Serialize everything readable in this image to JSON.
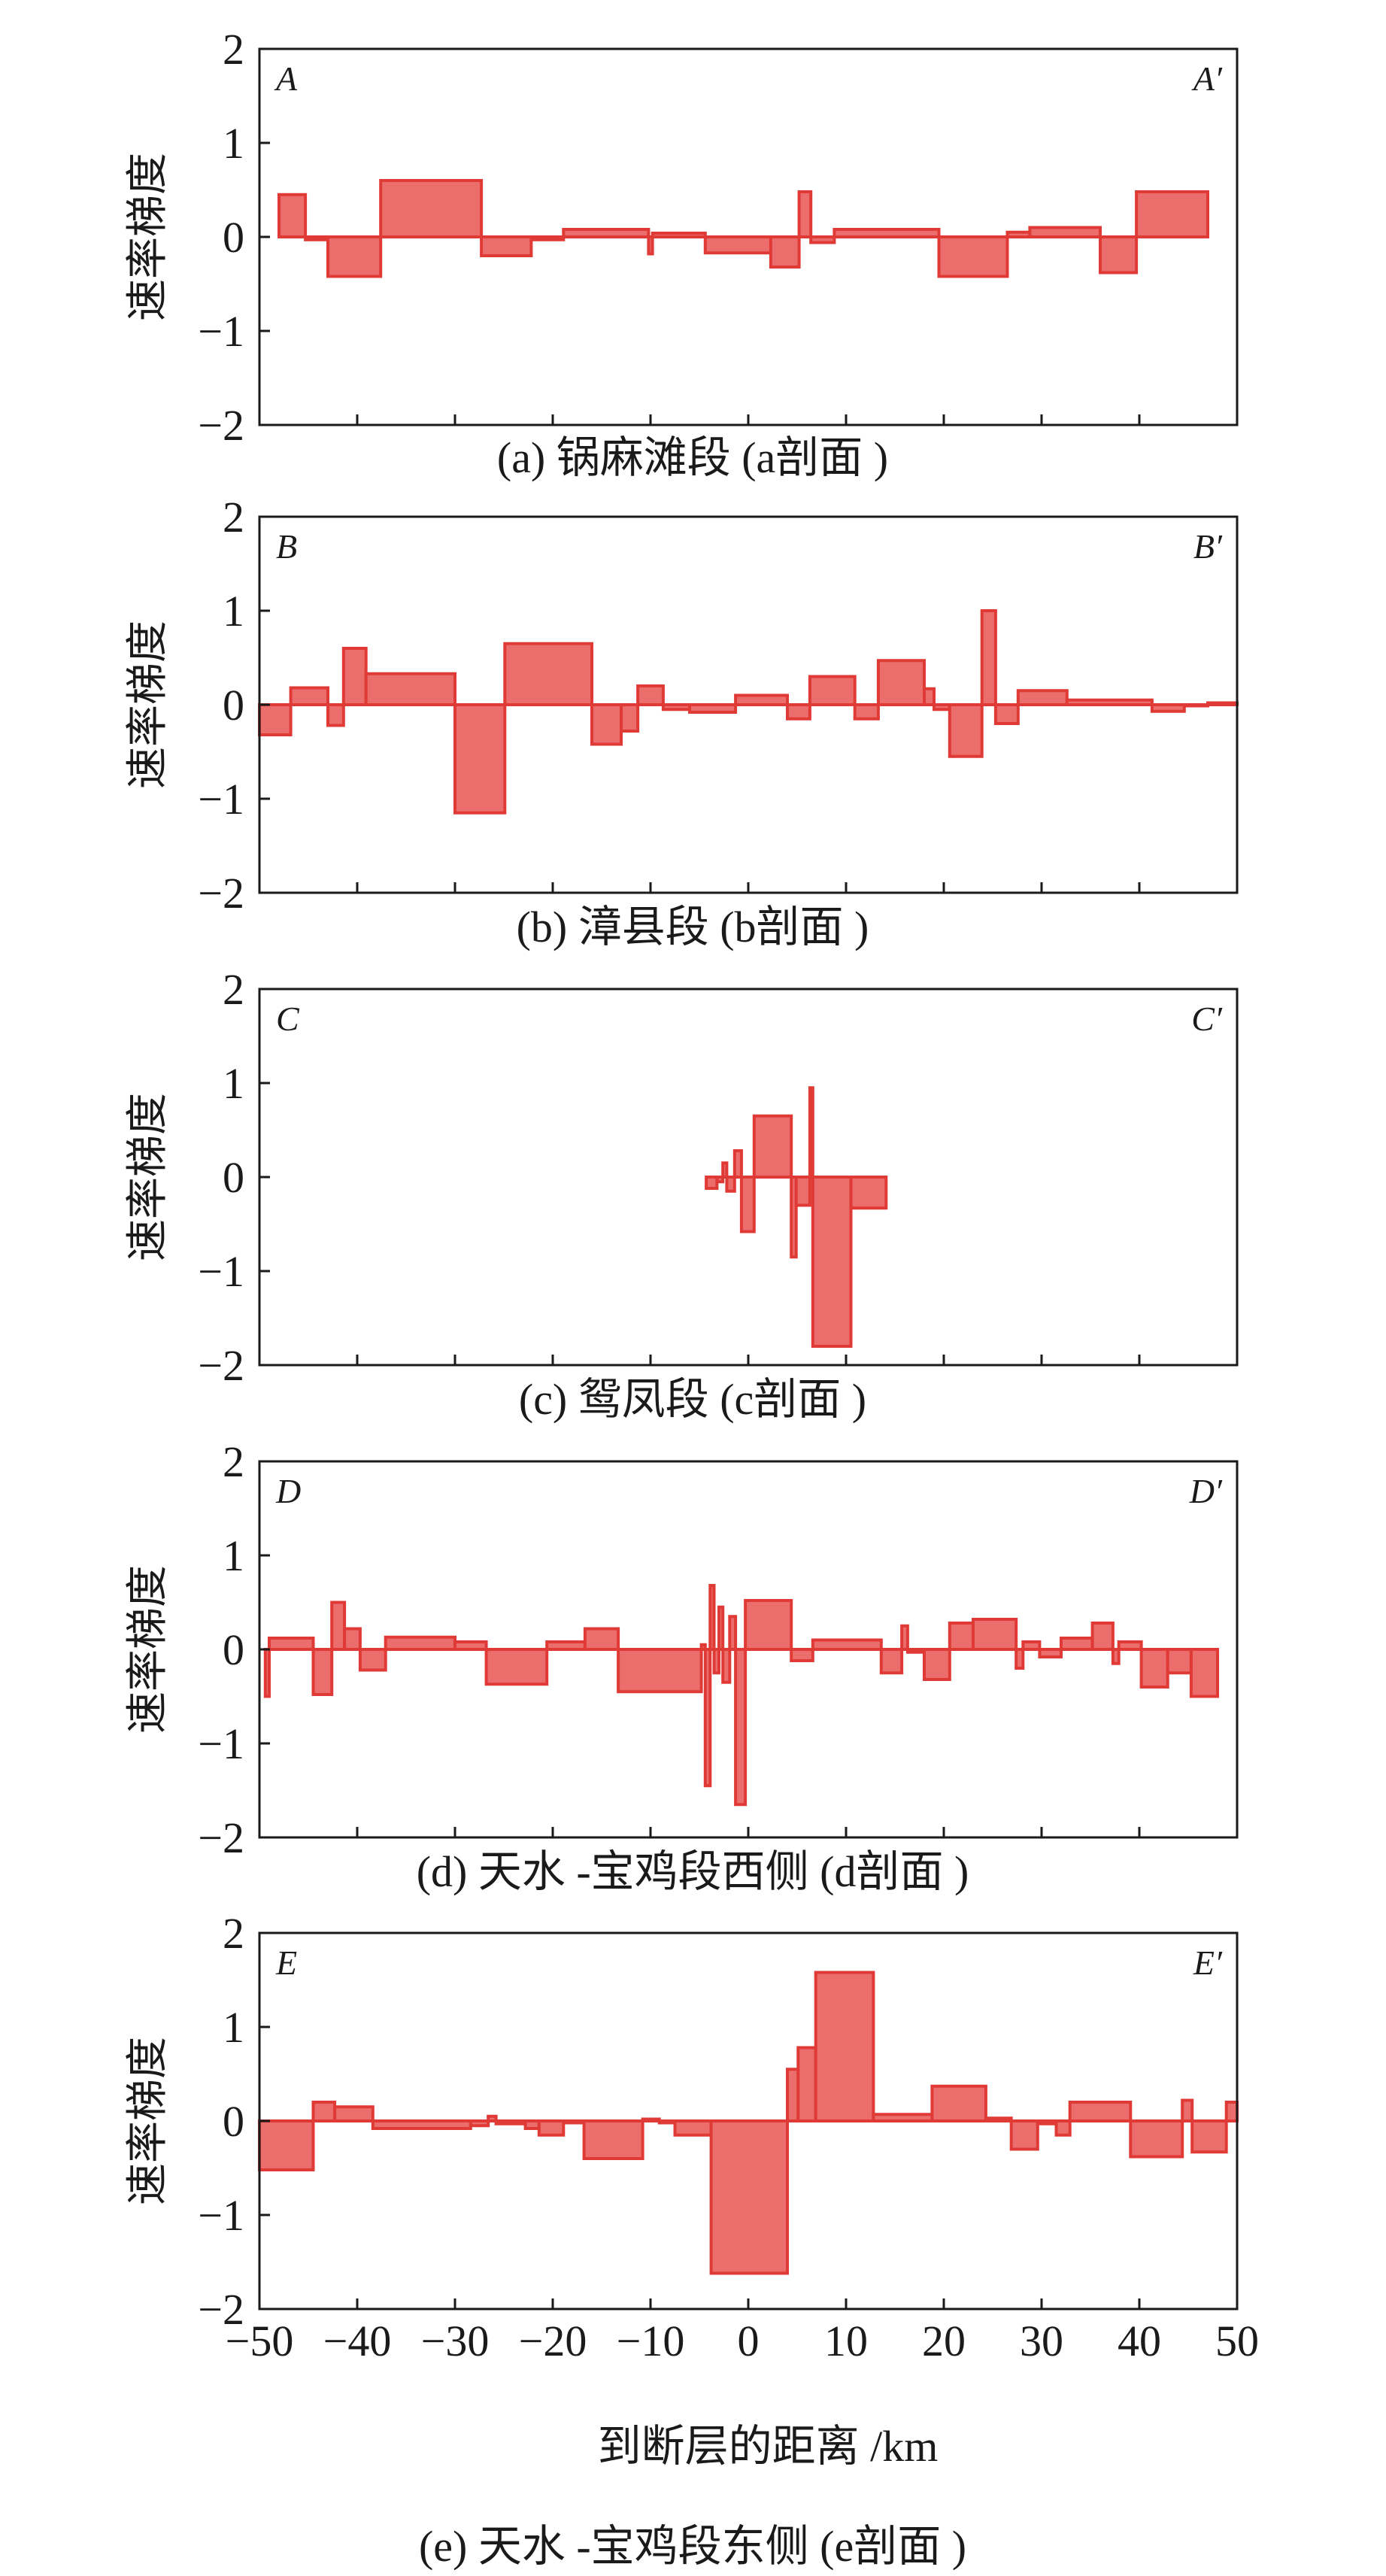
{
  "figure": {
    "ylabel": "速率梯度",
    "xlabel": "到断层的距离 /km",
    "bar_fill": "#ec6e6c",
    "bar_stroke": "#e03a37"
  },
  "chart_data": [
    {
      "type": "bar",
      "title": "(a) 锅麻滩段 (a剖面 )",
      "corner_left": "A",
      "corner_right": "A′",
      "xlim": [
        -50,
        50
      ],
      "ylim": [
        -2,
        2
      ],
      "yticks": [
        -2,
        -1,
        0,
        1,
        2
      ],
      "bars": [
        {
          "x0": -48.0,
          "x1": -45.3,
          "y": 0.45
        },
        {
          "x0": -45.3,
          "x1": -43.0,
          "y": -0.03
        },
        {
          "x0": -43.0,
          "x1": -37.6,
          "y": -0.42
        },
        {
          "x0": -37.6,
          "x1": -27.3,
          "y": 0.6
        },
        {
          "x0": -27.3,
          "x1": -22.2,
          "y": -0.2
        },
        {
          "x0": -22.2,
          "x1": -18.9,
          "y": -0.03
        },
        {
          "x0": -18.9,
          "x1": -10.2,
          "y": 0.08
        },
        {
          "x0": -10.2,
          "x1": -9.8,
          "y": -0.18
        },
        {
          "x0": -9.8,
          "x1": -4.4,
          "y": 0.04
        },
        {
          "x0": -4.4,
          "x1": 2.3,
          "y": -0.17
        },
        {
          "x0": 2.3,
          "x1": 5.2,
          "y": -0.32
        },
        {
          "x0": 5.2,
          "x1": 6.4,
          "y": 0.48
        },
        {
          "x0": 6.4,
          "x1": 8.8,
          "y": -0.06
        },
        {
          "x0": 8.8,
          "x1": 19.5,
          "y": 0.08
        },
        {
          "x0": 19.5,
          "x1": 26.5,
          "y": -0.42
        },
        {
          "x0": 26.5,
          "x1": 28.8,
          "y": 0.05
        },
        {
          "x0": 28.8,
          "x1": 36.0,
          "y": 0.1
        },
        {
          "x0": 36.0,
          "x1": 39.7,
          "y": -0.38
        },
        {
          "x0": 39.7,
          "x1": 47.0,
          "y": 0.48
        }
      ]
    },
    {
      "type": "bar",
      "title": "(b) 漳县段 (b剖面 )",
      "corner_left": "B",
      "corner_right": "B′",
      "xlim": [
        -50,
        50
      ],
      "ylim": [
        -2,
        2
      ],
      "yticks": [
        -2,
        -1,
        0,
        1,
        2
      ],
      "bars": [
        {
          "x0": -50.0,
          "x1": -46.8,
          "y": -0.32
        },
        {
          "x0": -46.8,
          "x1": -43.0,
          "y": 0.18
        },
        {
          "x0": -43.0,
          "x1": -41.4,
          "y": -0.22
        },
        {
          "x0": -41.4,
          "x1": -39.1,
          "y": 0.6
        },
        {
          "x0": -39.1,
          "x1": -30.0,
          "y": 0.33
        },
        {
          "x0": -30.0,
          "x1": -24.9,
          "y": -1.15
        },
        {
          "x0": -24.9,
          "x1": -16.0,
          "y": 0.65
        },
        {
          "x0": -16.0,
          "x1": -13.0,
          "y": -0.42
        },
        {
          "x0": -13.0,
          "x1": -11.3,
          "y": -0.28
        },
        {
          "x0": -11.3,
          "x1": -8.7,
          "y": 0.2
        },
        {
          "x0": -8.7,
          "x1": -6.0,
          "y": -0.05
        },
        {
          "x0": -6.0,
          "x1": -1.3,
          "y": -0.08
        },
        {
          "x0": -1.3,
          "x1": 4.0,
          "y": 0.1
        },
        {
          "x0": 4.0,
          "x1": 6.3,
          "y": -0.15
        },
        {
          "x0": 6.3,
          "x1": 10.9,
          "y": 0.3
        },
        {
          "x0": 10.9,
          "x1": 13.3,
          "y": -0.15
        },
        {
          "x0": 13.3,
          "x1": 18.0,
          "y": 0.47
        },
        {
          "x0": 18.0,
          "x1": 19.0,
          "y": 0.17
        },
        {
          "x0": 19.0,
          "x1": 20.6,
          "y": -0.05
        },
        {
          "x0": 20.6,
          "x1": 23.9,
          "y": -0.55
        },
        {
          "x0": 23.9,
          "x1": 25.3,
          "y": 1.0
        },
        {
          "x0": 25.3,
          "x1": 27.6,
          "y": -0.2
        },
        {
          "x0": 27.6,
          "x1": 32.6,
          "y": 0.15
        },
        {
          "x0": 32.6,
          "x1": 41.3,
          "y": 0.05
        },
        {
          "x0": 41.3,
          "x1": 44.6,
          "y": -0.07
        },
        {
          "x0": 44.6,
          "x1": 47.0,
          "y": 0.0
        },
        {
          "x0": 47.0,
          "x1": 50.0,
          "y": 0.02
        }
      ]
    },
    {
      "type": "bar",
      "title": "(c) 鸳凤段 (c剖面 )",
      "corner_left": "C",
      "corner_right": "C′",
      "xlim": [
        -50,
        50
      ],
      "ylim": [
        -2,
        2
      ],
      "yticks": [
        -2,
        -1,
        0,
        1,
        2
      ],
      "bars": [
        {
          "x0": -4.3,
          "x1": -3.2,
          "y": -0.12
        },
        {
          "x0": -3.2,
          "x1": -2.6,
          "y": -0.05
        },
        {
          "x0": -2.6,
          "x1": -2.2,
          "y": 0.15
        },
        {
          "x0": -2.2,
          "x1": -1.4,
          "y": -0.15
        },
        {
          "x0": -1.4,
          "x1": -0.7,
          "y": 0.28
        },
        {
          "x0": -0.7,
          "x1": 0.6,
          "y": -0.58
        },
        {
          "x0": 0.6,
          "x1": 4.4,
          "y": 0.65
        },
        {
          "x0": 4.4,
          "x1": 4.9,
          "y": -0.85
        },
        {
          "x0": 4.9,
          "x1": 6.3,
          "y": -0.3
        },
        {
          "x0": 6.3,
          "x1": 6.6,
          "y": 0.95
        },
        {
          "x0": 6.6,
          "x1": 10.5,
          "y": -1.8
        },
        {
          "x0": 10.5,
          "x1": 14.1,
          "y": -0.33
        }
      ]
    },
    {
      "type": "bar",
      "title": "(d) 天水 -宝鸡段西侧 (d剖面 )",
      "corner_left": "D",
      "corner_right": "D′",
      "xlim": [
        -50,
        50
      ],
      "ylim": [
        -2,
        2
      ],
      "yticks": [
        -2,
        -1,
        0,
        1,
        2
      ],
      "bars": [
        {
          "x0": -49.4,
          "x1": -49.0,
          "y": -0.5
        },
        {
          "x0": -49.0,
          "x1": -44.5,
          "y": 0.12
        },
        {
          "x0": -44.5,
          "x1": -42.6,
          "y": -0.48
        },
        {
          "x0": -42.6,
          "x1": -41.3,
          "y": 0.5
        },
        {
          "x0": -41.3,
          "x1": -39.7,
          "y": 0.22
        },
        {
          "x0": -39.7,
          "x1": -37.1,
          "y": -0.22
        },
        {
          "x0": -37.1,
          "x1": -30.0,
          "y": 0.13
        },
        {
          "x0": -30.0,
          "x1": -26.8,
          "y": 0.08
        },
        {
          "x0": -26.8,
          "x1": -20.6,
          "y": -0.37
        },
        {
          "x0": -20.6,
          "x1": -16.7,
          "y": 0.08
        },
        {
          "x0": -16.7,
          "x1": -13.3,
          "y": 0.22
        },
        {
          "x0": -13.3,
          "x1": -4.8,
          "y": -0.45
        },
        {
          "x0": -4.8,
          "x1": -4.4,
          "y": 0.05
        },
        {
          "x0": -4.4,
          "x1": -3.9,
          "y": -1.45
        },
        {
          "x0": -3.9,
          "x1": -3.5,
          "y": 0.68
        },
        {
          "x0": -3.5,
          "x1": -3.0,
          "y": -0.25
        },
        {
          "x0": -3.0,
          "x1": -2.6,
          "y": 0.45
        },
        {
          "x0": -2.6,
          "x1": -1.9,
          "y": -0.35
        },
        {
          "x0": -1.9,
          "x1": -1.3,
          "y": 0.35
        },
        {
          "x0": -1.3,
          "x1": -0.3,
          "y": -1.65
        },
        {
          "x0": -0.3,
          "x1": 4.4,
          "y": 0.52
        },
        {
          "x0": 4.4,
          "x1": 6.6,
          "y": -0.12
        },
        {
          "x0": 6.6,
          "x1": 13.6,
          "y": 0.1
        },
        {
          "x0": 13.6,
          "x1": 15.7,
          "y": -0.25
        },
        {
          "x0": 15.7,
          "x1": 16.3,
          "y": 0.25
        },
        {
          "x0": 16.3,
          "x1": 18.0,
          "y": -0.03
        },
        {
          "x0": 18.0,
          "x1": 20.6,
          "y": -0.32
        },
        {
          "x0": 20.6,
          "x1": 23.0,
          "y": 0.28
        },
        {
          "x0": 23.0,
          "x1": 27.4,
          "y": 0.32
        },
        {
          "x0": 27.4,
          "x1": 28.1,
          "y": -0.2
        },
        {
          "x0": 28.1,
          "x1": 29.8,
          "y": 0.08
        },
        {
          "x0": 29.8,
          "x1": 32.0,
          "y": -0.08
        },
        {
          "x0": 32.0,
          "x1": 35.2,
          "y": 0.12
        },
        {
          "x0": 35.2,
          "x1": 37.3,
          "y": 0.28
        },
        {
          "x0": 37.3,
          "x1": 37.9,
          "y": -0.15
        },
        {
          "x0": 37.9,
          "x1": 40.2,
          "y": 0.08
        },
        {
          "x0": 40.2,
          "x1": 42.9,
          "y": -0.4
        },
        {
          "x0": 42.9,
          "x1": 45.3,
          "y": -0.25
        },
        {
          "x0": 45.3,
          "x1": 48.0,
          "y": -0.5
        }
      ]
    },
    {
      "type": "bar",
      "title": "(e) 天水 -宝鸡段东侧 (e剖面 )",
      "corner_left": "E",
      "corner_right": "E′",
      "xlim": [
        -50,
        50
      ],
      "ylim": [
        -2,
        2
      ],
      "yticks": [
        -2,
        -1,
        0,
        1,
        2
      ],
      "xticks": [
        -50,
        -40,
        -30,
        -20,
        -10,
        0,
        10,
        20,
        30,
        40,
        50
      ],
      "xlabel": "到断层的距离 /km",
      "bars": [
        {
          "x0": -50.0,
          "x1": -44.5,
          "y": -0.52
        },
        {
          "x0": -44.5,
          "x1": -42.3,
          "y": 0.2
        },
        {
          "x0": -42.3,
          "x1": -38.4,
          "y": 0.15
        },
        {
          "x0": -38.4,
          "x1": -28.4,
          "y": -0.08
        },
        {
          "x0": -28.4,
          "x1": -26.6,
          "y": -0.05
        },
        {
          "x0": -26.6,
          "x1": -25.8,
          "y": 0.05
        },
        {
          "x0": -25.8,
          "x1": -22.8,
          "y": -0.03
        },
        {
          "x0": -22.8,
          "x1": -21.4,
          "y": -0.08
        },
        {
          "x0": -21.4,
          "x1": -18.9,
          "y": -0.15
        },
        {
          "x0": -18.9,
          "x1": -16.8,
          "y": -0.02
        },
        {
          "x0": -16.8,
          "x1": -10.8,
          "y": -0.4
        },
        {
          "x0": -10.8,
          "x1": -9.1,
          "y": 0.02
        },
        {
          "x0": -9.1,
          "x1": -7.5,
          "y": -0.02
        },
        {
          "x0": -7.5,
          "x1": -3.8,
          "y": -0.15
        },
        {
          "x0": -3.8,
          "x1": 4.0,
          "y": -1.62
        },
        {
          "x0": 4.0,
          "x1": 5.1,
          "y": 0.55
        },
        {
          "x0": 5.1,
          "x1": 6.9,
          "y": 0.78
        },
        {
          "x0": 6.9,
          "x1": 12.8,
          "y": 1.58
        },
        {
          "x0": 12.8,
          "x1": 18.8,
          "y": 0.07
        },
        {
          "x0": 18.8,
          "x1": 24.3,
          "y": 0.37
        },
        {
          "x0": 24.3,
          "x1": 26.9,
          "y": 0.03
        },
        {
          "x0": 26.9,
          "x1": 29.6,
          "y": -0.3
        },
        {
          "x0": 29.6,
          "x1": 31.5,
          "y": -0.03
        },
        {
          "x0": 31.5,
          "x1": 32.9,
          "y": -0.15
        },
        {
          "x0": 32.9,
          "x1": 39.1,
          "y": 0.2
        },
        {
          "x0": 39.1,
          "x1": 44.4,
          "y": -0.38
        },
        {
          "x0": 44.4,
          "x1": 45.4,
          "y": 0.22
        },
        {
          "x0": 45.4,
          "x1": 48.9,
          "y": -0.33
        },
        {
          "x0": 48.9,
          "x1": 50.0,
          "y": 0.2
        }
      ]
    }
  ]
}
